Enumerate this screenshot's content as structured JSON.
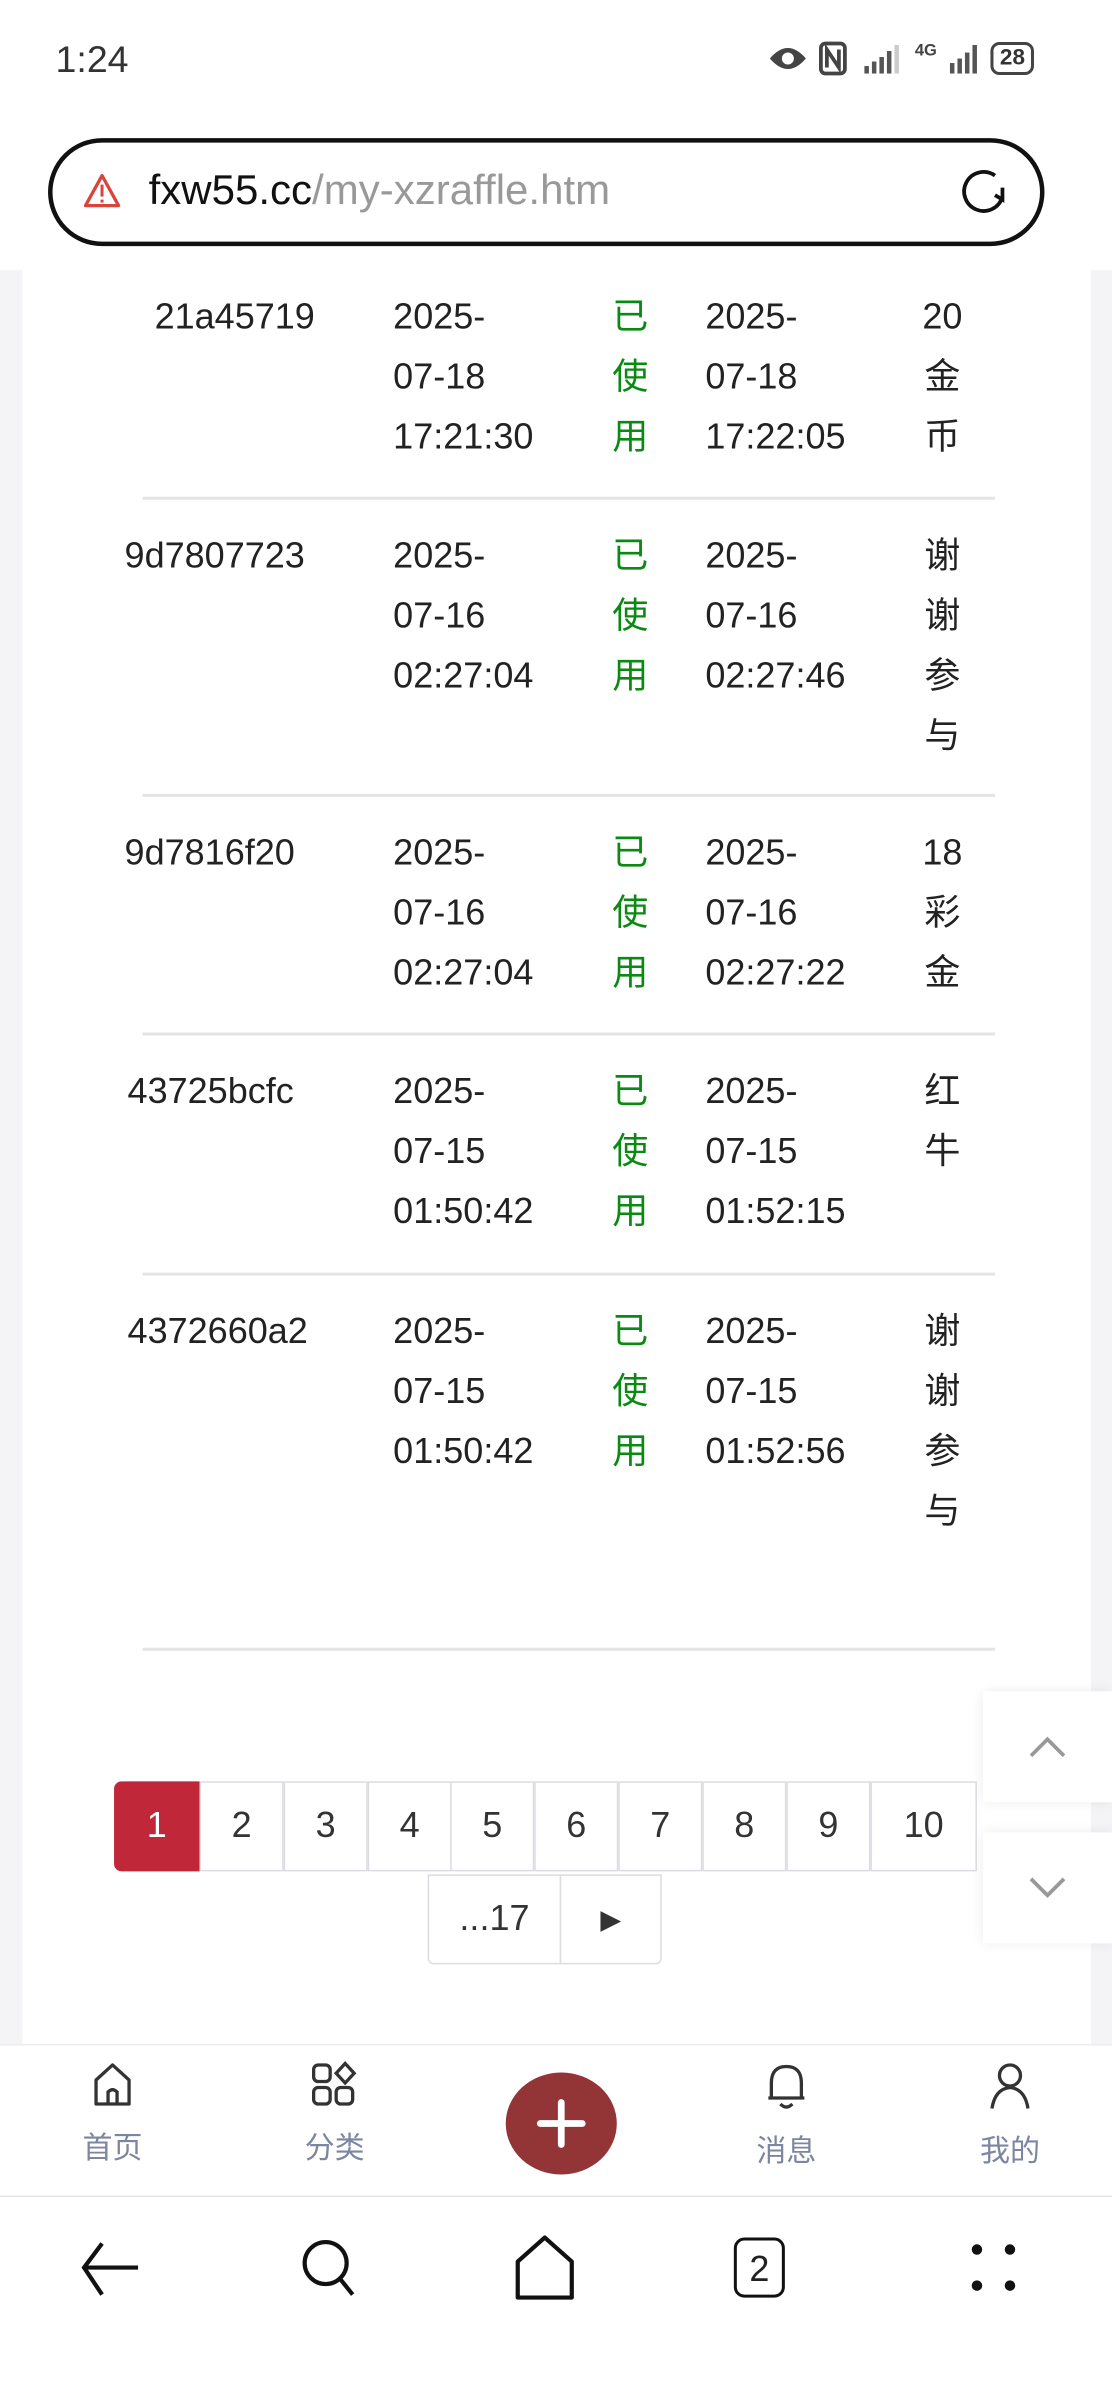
{
  "status_bar": {
    "time": "1:24",
    "battery": "28",
    "network": "4G"
  },
  "browser": {
    "url_domain": "fxw55.cc",
    "url_path": "/my-xzraffle.htm"
  },
  "table": {
    "rows": [
      {
        "id": "21a45719",
        "created": [
          "2025-",
          "07-18",
          "17:21:30"
        ],
        "status": [
          "已",
          "使",
          "用"
        ],
        "used": [
          "2025-",
          "07-18",
          "17:22:05"
        ],
        "prize": [
          "20",
          "金",
          "币"
        ]
      },
      {
        "id": "9d7807723",
        "created": [
          "2025-",
          "07-16",
          "02:27:04"
        ],
        "status": [
          "已",
          "使",
          "用"
        ],
        "used": [
          "2025-",
          "07-16",
          "02:27:46"
        ],
        "prize": [
          "谢",
          "谢",
          "参",
          "与"
        ]
      },
      {
        "id": "9d7816f20",
        "created": [
          "2025-",
          "07-16",
          "02:27:04"
        ],
        "status": [
          "已",
          "使",
          "用"
        ],
        "used": [
          "2025-",
          "07-16",
          "02:27:22"
        ],
        "prize": [
          "18",
          "彩",
          "金"
        ]
      },
      {
        "id": "43725bcfc",
        "created": [
          "2025-",
          "07-15",
          "01:50:42"
        ],
        "status": [
          "已",
          "使",
          "用"
        ],
        "used": [
          "2025-",
          "07-15",
          "01:52:15"
        ],
        "prize": [
          "红",
          "牛"
        ]
      },
      {
        "id": "4372660a2",
        "created": [
          "2025-",
          "07-15",
          "01:50:42"
        ],
        "status": [
          "已",
          "使",
          "用"
        ],
        "used": [
          "2025-",
          "07-15",
          "01:52:56"
        ],
        "prize": [
          "谢",
          "谢",
          "参",
          "与"
        ]
      }
    ],
    "status_color": "#0a8a12"
  },
  "pagination": {
    "pages": [
      "1",
      "2",
      "3",
      "4",
      "5",
      "6",
      "7",
      "8",
      "9",
      "10"
    ],
    "current": "1",
    "last": "...17",
    "next": "▶",
    "accent": "#c0283a"
  },
  "bottom_nav": {
    "items": [
      {
        "label": "首页",
        "icon": "home-icon"
      },
      {
        "label": "分类",
        "icon": "category-icon"
      },
      {
        "label": "消息",
        "icon": "bell-icon"
      },
      {
        "label": "我的",
        "icon": "user-icon"
      }
    ],
    "plus_color": "#933437"
  },
  "system_nav": {
    "tabs_count": "2"
  }
}
